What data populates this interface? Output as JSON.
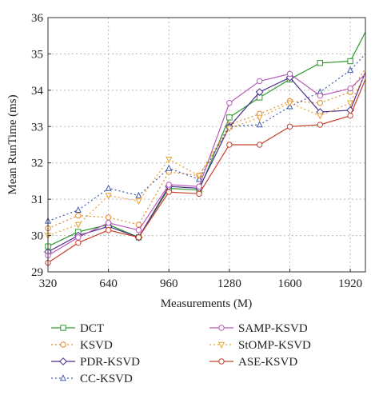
{
  "chart_data": {
    "type": "line",
    "xlabel": "Measurements (M)",
    "ylabel": "Mean RunTime (ms)",
    "xlim": [
      320,
      2000
    ],
    "ylim": [
      29,
      36
    ],
    "xticks": [
      320,
      640,
      960,
      1280,
      1600,
      1920
    ],
    "yticks": [
      29,
      30,
      31,
      32,
      33,
      34,
      35,
      36
    ],
    "grid": true,
    "legend_placement": "bottom, two columns",
    "x": [
      320,
      480,
      640,
      800,
      960,
      1120,
      1280,
      1440,
      1600,
      1760,
      1920,
      2000
    ],
    "series": [
      {
        "name": "DCT",
        "color": "#2e9b2e",
        "marker": "square",
        "dash": "solid",
        "values": [
          29.7,
          30.1,
          30.3,
          29.95,
          31.3,
          31.25,
          33.25,
          33.8,
          34.3,
          34.75,
          34.8,
          35.6
        ]
      },
      {
        "name": "KSVD",
        "color": "#e0892a",
        "marker": "circle",
        "dash": "dotted",
        "values": [
          30.2,
          30.55,
          30.5,
          30.3,
          31.75,
          31.65,
          33.05,
          33.35,
          33.7,
          33.65,
          33.95,
          34.6
        ]
      },
      {
        "name": "PDR-KSVD",
        "color": "#4a2c8c",
        "marker": "diamond",
        "dash": "solid",
        "values": [
          29.55,
          30.0,
          30.25,
          29.95,
          31.35,
          31.3,
          33.0,
          33.95,
          34.35,
          33.4,
          33.45,
          34.5
        ]
      },
      {
        "name": "CC-KSVD",
        "color": "#3d5bab",
        "marker": "triangle-up",
        "dash": "dotted",
        "values": [
          30.4,
          30.7,
          31.3,
          31.1,
          31.85,
          31.55,
          33.0,
          33.05,
          33.55,
          33.95,
          34.55,
          35.0
        ]
      },
      {
        "name": "SAMP-KSVD",
        "color": "#b85ab8",
        "marker": "circle",
        "dash": "solid",
        "values": [
          29.45,
          29.95,
          30.35,
          30.15,
          31.4,
          31.35,
          33.65,
          34.25,
          34.45,
          33.85,
          34.05,
          34.45
        ]
      },
      {
        "name": "StOMP-KSVD",
        "color": "#e8a030",
        "marker": "triangle-down",
        "dash": "dotted",
        "values": [
          30.0,
          30.3,
          31.1,
          30.95,
          32.1,
          31.65,
          32.95,
          33.25,
          33.65,
          33.3,
          33.65,
          34.45
        ]
      },
      {
        "name": "ASE-KSVD",
        "color": "#c8402a",
        "marker": "circle",
        "dash": "solid",
        "values": [
          29.25,
          29.8,
          30.15,
          29.95,
          31.2,
          31.15,
          32.5,
          32.5,
          33.0,
          33.05,
          33.3,
          34.3
        ]
      }
    ]
  }
}
